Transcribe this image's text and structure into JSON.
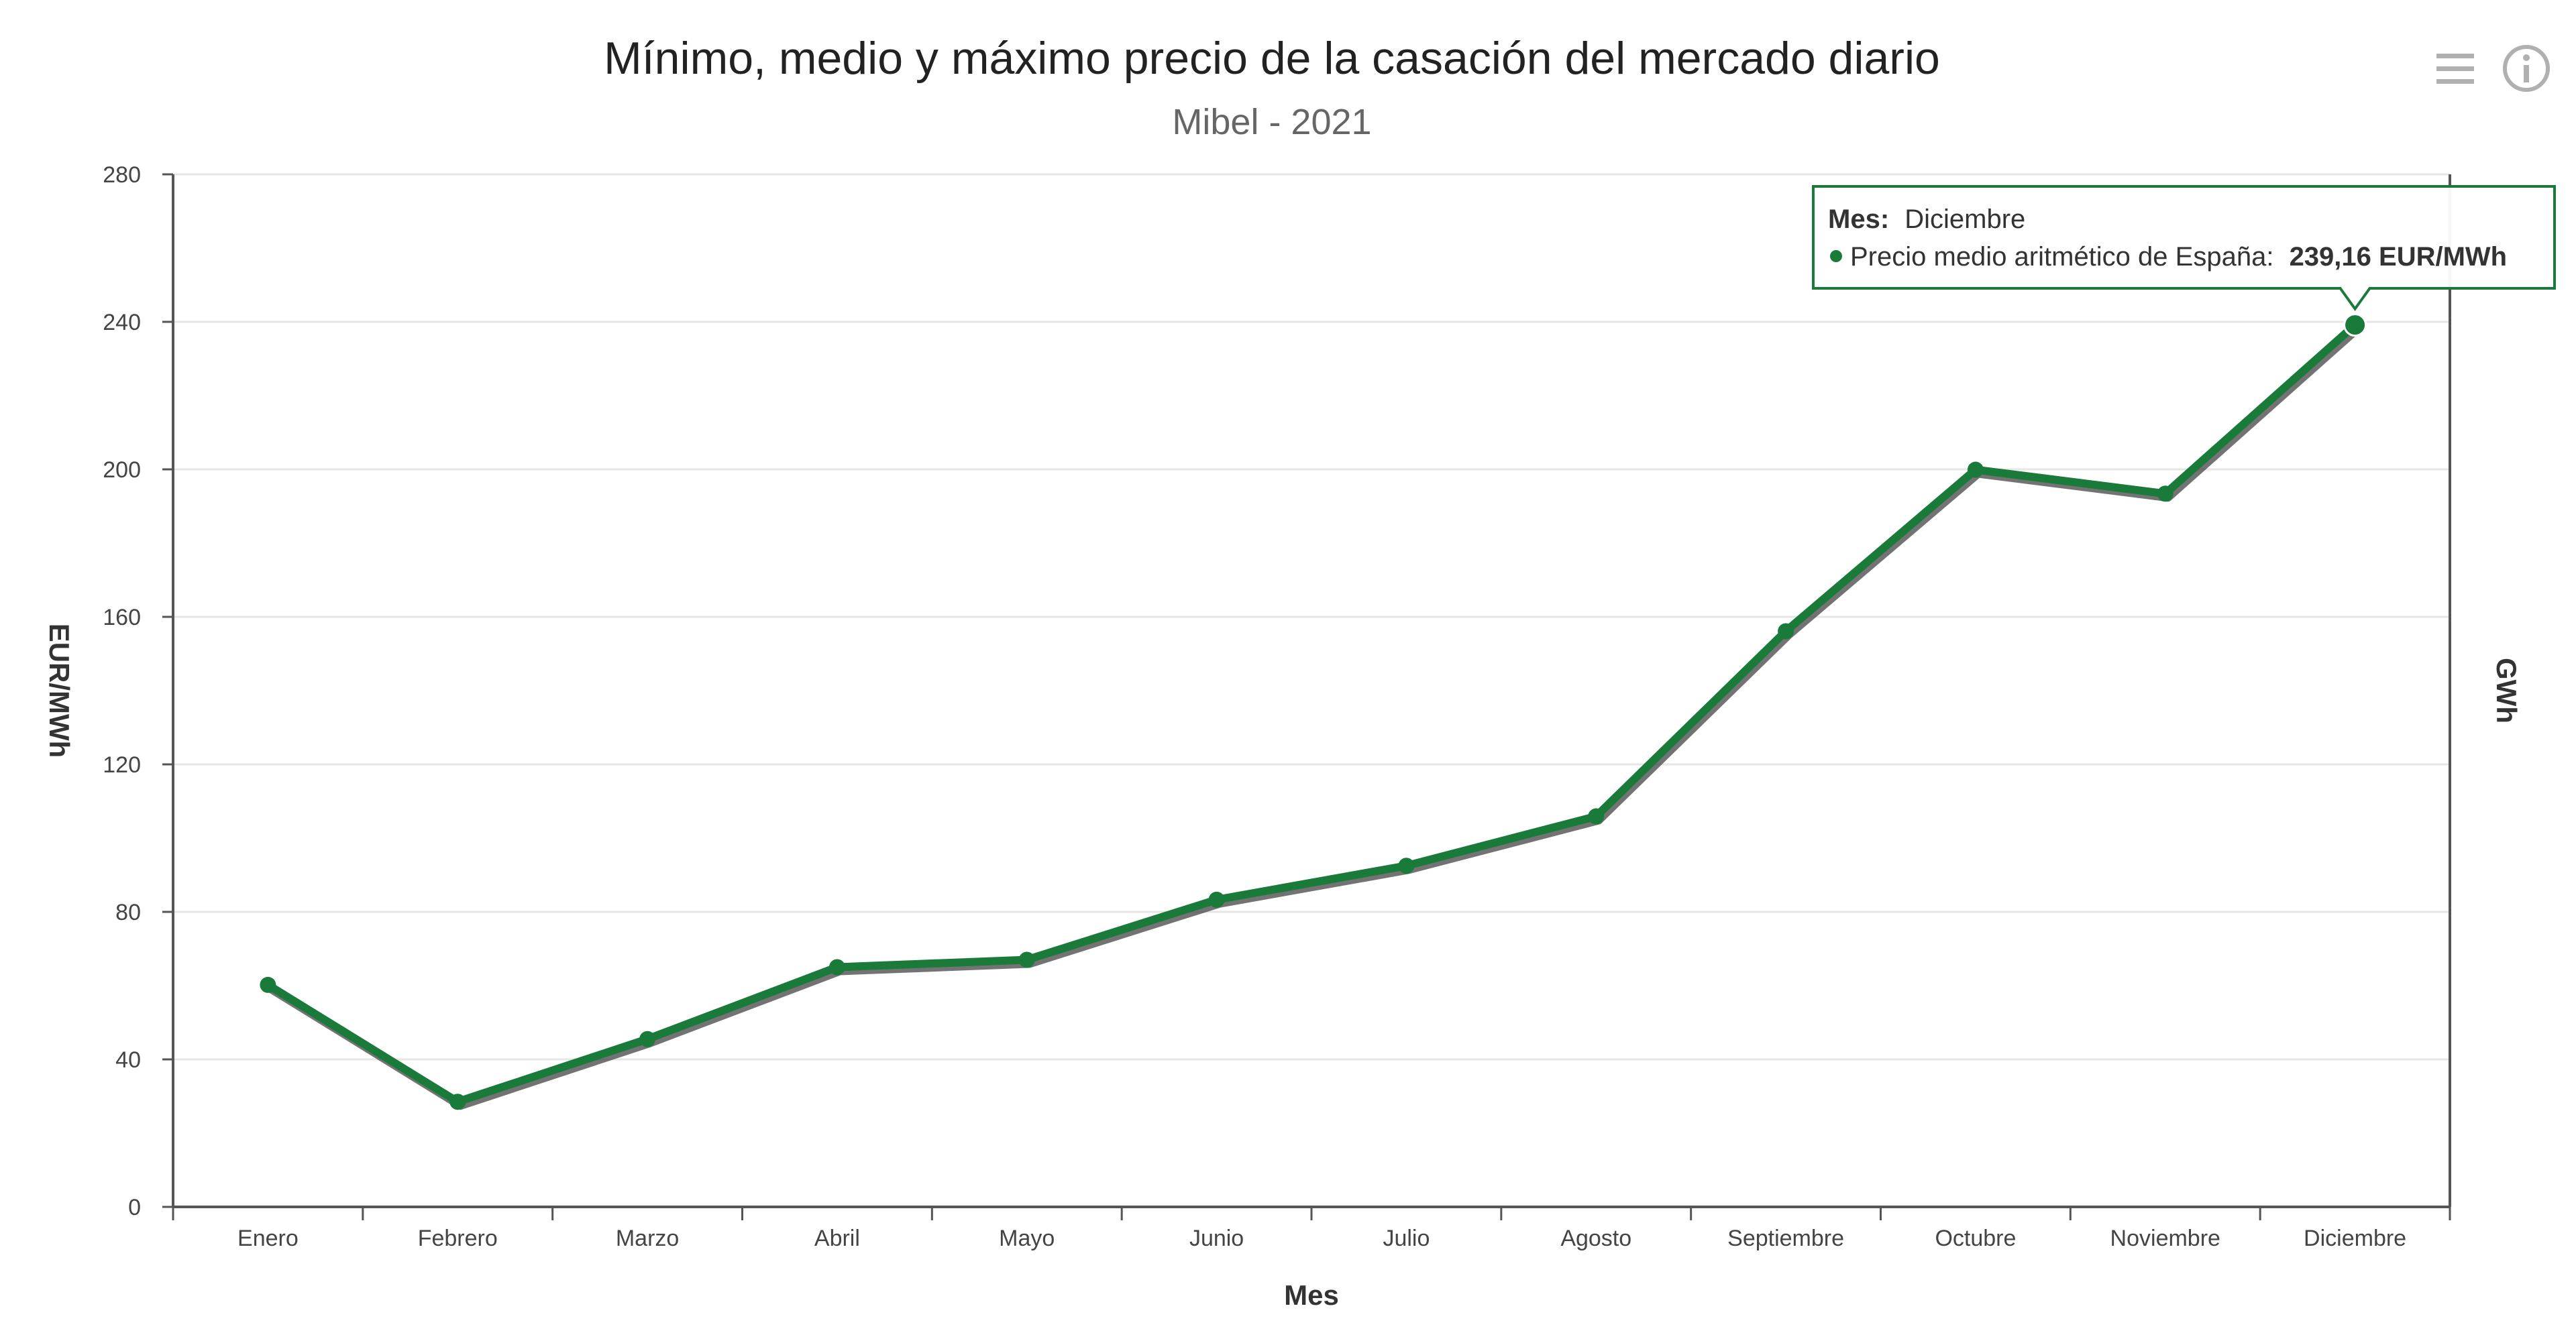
{
  "header": {
    "title": "Mínimo, medio y máximo precio de la casación del mercado diario",
    "subtitle": "Mibel - 2021"
  },
  "icons": {
    "menu": "hamburger-menu-icon",
    "info": "info-icon"
  },
  "colors": {
    "series": "#1a7a3a",
    "shadow": "#444444",
    "grid": "#e6e6e6",
    "axis": "#555555",
    "tooltip_border": "#1a7a3a"
  },
  "tooltip": {
    "month_label": "Mes:",
    "month_value": "Diciembre",
    "series_label": "Precio medio aritmético de España:",
    "value_text": "239,16 EUR/MWh"
  },
  "chart_data": {
    "type": "line",
    "title": "Mínimo, medio y máximo precio de la casación del mercado diario",
    "subtitle": "Mibel - 2021",
    "xlabel": "Mes",
    "ylabel": "EUR/MWh",
    "y2label": "GWh",
    "categories": [
      "Enero",
      "Febrero",
      "Marzo",
      "Abril",
      "Mayo",
      "Junio",
      "Julio",
      "Agosto",
      "Septiembre",
      "Octubre",
      "Noviembre",
      "Diciembre"
    ],
    "series": [
      {
        "name": "Precio medio aritmético de España",
        "values": [
          60.2,
          28.5,
          45.5,
          65.0,
          67.0,
          83.3,
          92.5,
          105.9,
          156.1,
          199.9,
          193.4,
          239.16
        ]
      }
    ],
    "ylim": [
      0,
      280
    ],
    "yticks": [
      0,
      40,
      80,
      120,
      160,
      200,
      240,
      280
    ],
    "grid": true,
    "legend": "none",
    "highlighted_point": {
      "category": "Diciembre",
      "value": 239.16
    }
  }
}
